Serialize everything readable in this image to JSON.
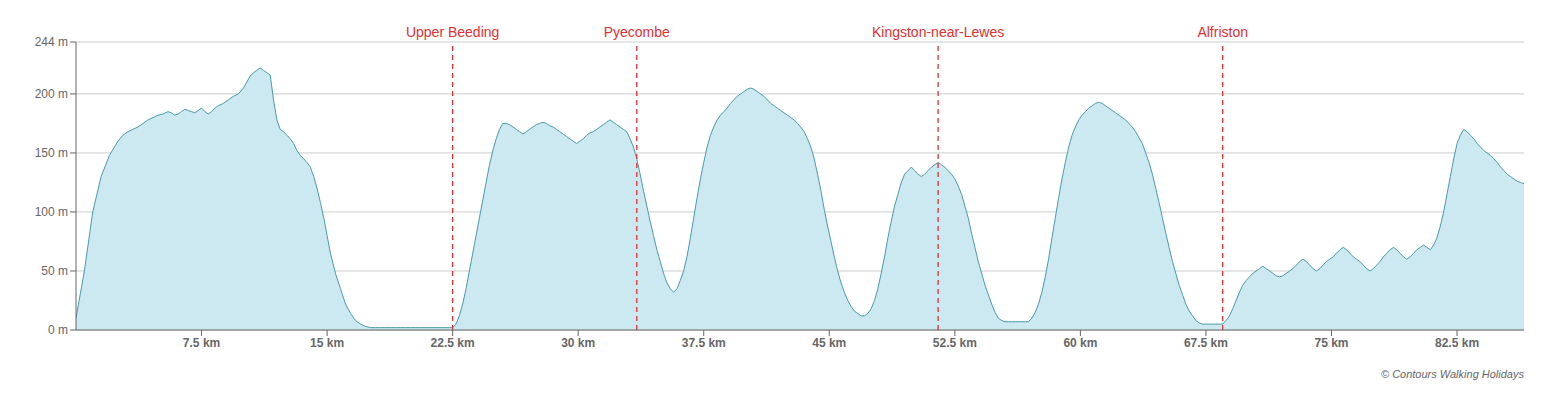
{
  "chart_data": {
    "type": "area",
    "color": "#4a9aa8",
    "fill_color": "#cce8f0",
    "grid": true,
    "xlim": [
      0,
      86.5
    ],
    "ylim": [
      0,
      244
    ],
    "xticks": [
      {
        "value": 7.5,
        "label": "7.5 km"
      },
      {
        "value": 15,
        "label": "15 km"
      },
      {
        "value": 22.5,
        "label": "22.5 km"
      },
      {
        "value": 30,
        "label": "30 km"
      },
      {
        "value": 37.5,
        "label": "37.5 km"
      },
      {
        "value": 45,
        "label": "45 km"
      },
      {
        "value": 52.5,
        "label": "52.5 km"
      },
      {
        "value": 60,
        "label": "60 km"
      },
      {
        "value": 67.5,
        "label": "67.5 km"
      },
      {
        "value": 75,
        "label": "75 km"
      },
      {
        "value": 82.5,
        "label": "82.5 km"
      }
    ],
    "yticks": [
      {
        "value": 0,
        "label": "0 m"
      },
      {
        "value": 50,
        "label": "50 m"
      },
      {
        "value": 100,
        "label": "100 m"
      },
      {
        "value": 150,
        "label": "150 m"
      },
      {
        "value": 200,
        "label": "200 m"
      },
      {
        "value": 244,
        "label": "244 m"
      }
    ],
    "annotations": [
      {
        "type": "vline",
        "x": 22.5,
        "label": "Upper Beeding",
        "color": "#e03030",
        "line_style": "dashed"
      },
      {
        "type": "vline",
        "x": 33.5,
        "label": "Pyecombe",
        "color": "#e03030",
        "line_style": "dashed"
      },
      {
        "type": "vline",
        "x": 51.5,
        "label": "Kingston-near-Lewes",
        "color": "#e03030",
        "line_style": "dashed"
      },
      {
        "type": "vline",
        "x": 68.5,
        "label": "Alfriston",
        "color": "#e03030",
        "line_style": "dashed"
      },
      {
        "type": "note",
        "text": "© Contours Walking Holidays"
      }
    ],
    "x": [
      0.0,
      0.5,
      1.0,
      1.5,
      2.0,
      2.5,
      2.8,
      3.1,
      3.4,
      3.7,
      4.0,
      4.3,
      4.6,
      4.9,
      5.2,
      5.5,
      5.7,
      5.9,
      6.1,
      6.3,
      6.5,
      6.7,
      6.9,
      7.1,
      7.3,
      7.5,
      7.7,
      7.9,
      8.1,
      8.3,
      8.5,
      8.8,
      9.1,
      9.4,
      9.7,
      10.0,
      10.2,
      10.4,
      10.6,
      10.8,
      11.0,
      11.2,
      11.4,
      11.6,
      11.8,
      12.0,
      12.2,
      12.4,
      12.6,
      12.8,
      13.0,
      13.2,
      13.4,
      13.6,
      13.8,
      14.0,
      14.2,
      14.4,
      14.6,
      14.8,
      15.0,
      15.2,
      15.5,
      15.8,
      16.1,
      16.4,
      16.7,
      17.0,
      17.3,
      17.6,
      17.9,
      18.2,
      18.5,
      18.8,
      19.1,
      19.4,
      19.7,
      20.0,
      20.3,
      20.6,
      20.9,
      21.2,
      21.5,
      21.8,
      22.1,
      22.3,
      22.5,
      22.7,
      22.9,
      23.1,
      23.3,
      23.5,
      23.7,
      23.9,
      24.1,
      24.3,
      24.5,
      24.7,
      24.9,
      25.1,
      25.3,
      25.5,
      25.7,
      25.9,
      26.1,
      26.3,
      26.5,
      26.7,
      26.9,
      27.1,
      27.3,
      27.5,
      27.7,
      27.9,
      28.1,
      28.3,
      28.5,
      28.7,
      28.9,
      29.1,
      29.3,
      29.5,
      29.7,
      29.9,
      30.1,
      30.3,
      30.5,
      30.7,
      30.9,
      31.1,
      31.3,
      31.5,
      31.7,
      31.9,
      32.1,
      32.3,
      32.5,
      32.7,
      32.9,
      33.1,
      33.3,
      33.5,
      33.7,
      33.9,
      34.1,
      34.3,
      34.5,
      34.7,
      34.9,
      35.1,
      35.3,
      35.5,
      35.7,
      35.9,
      36.1,
      36.3,
      36.5,
      36.7,
      36.9,
      37.1,
      37.3,
      37.5,
      37.7,
      37.9,
      38.1,
      38.3,
      38.5,
      38.7,
      38.9,
      39.1,
      39.3,
      39.5,
      39.7,
      39.9,
      40.1,
      40.3,
      40.5,
      40.7,
      40.9,
      41.1,
      41.3,
      41.5,
      41.7,
      41.9,
      42.1,
      42.3,
      42.5,
      42.7,
      42.9,
      43.1,
      43.3,
      43.5,
      43.7,
      43.9,
      44.1,
      44.3,
      44.5,
      44.7,
      44.9,
      45.1,
      45.3,
      45.5,
      45.7,
      45.9,
      46.1,
      46.3,
      46.5,
      46.7,
      46.9,
      47.1,
      47.3,
      47.5,
      47.7,
      47.9,
      48.1,
      48.3,
      48.5,
      48.7,
      48.9,
      49.1,
      49.3,
      49.5,
      49.7,
      49.9,
      50.1,
      50.3,
      50.5,
      50.7,
      50.9,
      51.1,
      51.3,
      51.5,
      51.7,
      51.9,
      52.1,
      52.3,
      52.5,
      52.7,
      52.9,
      53.1,
      53.3,
      53.5,
      53.7,
      53.9,
      54.1,
      54.3,
      54.5,
      54.7,
      54.9,
      55.1,
      55.3,
      55.5,
      55.7,
      55.9,
      56.1,
      56.3,
      56.5,
      56.7,
      56.9,
      57.1,
      57.3,
      57.5,
      57.7,
      57.9,
      58.1,
      58.3,
      58.5,
      58.7,
      58.9,
      59.1,
      59.3,
      59.5,
      59.7,
      59.9,
      60.1,
      60.3,
      60.5,
      60.7,
      60.9,
      61.1,
      61.3,
      61.5,
      61.7,
      61.9,
      62.1,
      62.3,
      62.5,
      62.7,
      62.9,
      63.1,
      63.3,
      63.5,
      63.7,
      63.9,
      64.1,
      64.3,
      64.5,
      64.7,
      64.9,
      65.1,
      65.3,
      65.5,
      65.7,
      65.9,
      66.1,
      66.3,
      66.5,
      66.7,
      66.9,
      67.1,
      67.3,
      67.5,
      67.7,
      67.9,
      68.1,
      68.3,
      68.5,
      68.7,
      68.9,
      69.1,
      69.3,
      69.5,
      69.7,
      69.9,
      70.1,
      70.3,
      70.5,
      70.7,
      70.9,
      71.1,
      71.3,
      71.5,
      71.7,
      71.9,
      72.1,
      72.3,
      72.5,
      72.7,
      72.9,
      73.1,
      73.3,
      73.5,
      73.7,
      73.9,
      74.1,
      74.3,
      74.5,
      74.7,
      74.9,
      75.1,
      75.3,
      75.5,
      75.7,
      75.9,
      76.1,
      76.3,
      76.5,
      76.7,
      76.9,
      77.1,
      77.3,
      77.5,
      77.7,
      77.9,
      78.1,
      78.3,
      78.5,
      78.7,
      78.9,
      79.1,
      79.3,
      79.5,
      79.7,
      79.9,
      80.1,
      80.3,
      80.5,
      80.7,
      80.9,
      81.1,
      81.3,
      81.5,
      81.7,
      81.9,
      82.1,
      82.3,
      82.5,
      82.7,
      82.9,
      83.1,
      83.3,
      83.5,
      83.7,
      83.9,
      84.1,
      84.3,
      84.5,
      84.7,
      84.9,
      85.1,
      85.3,
      85.5,
      85.7,
      85.9,
      86.1,
      86.3,
      86.5
    ],
    "values": [
      10,
      50,
      100,
      130,
      148,
      160,
      165,
      168,
      170,
      172,
      175,
      178,
      180,
      182,
      183,
      185,
      184,
      182,
      183,
      185,
      187,
      186,
      185,
      184,
      186,
      188,
      185,
      183,
      185,
      188,
      190,
      192,
      195,
      198,
      200,
      205,
      210,
      215,
      218,
      220,
      222,
      220,
      218,
      216,
      195,
      178,
      170,
      168,
      165,
      162,
      158,
      152,
      148,
      145,
      142,
      138,
      130,
      120,
      108,
      95,
      80,
      65,
      48,
      35,
      22,
      14,
      8,
      5,
      3,
      2,
      2,
      2,
      2,
      2,
      2,
      2,
      2,
      2,
      2,
      2,
      2,
      2,
      2,
      2,
      2,
      2,
      2,
      5,
      12,
      22,
      35,
      50,
      65,
      80,
      95,
      110,
      125,
      140,
      152,
      162,
      170,
      175,
      175,
      174,
      172,
      170,
      168,
      166,
      168,
      170,
      172,
      174,
      175,
      176,
      175,
      173,
      172,
      170,
      168,
      166,
      164,
      162,
      160,
      158,
      160,
      162,
      165,
      167,
      168,
      170,
      172,
      174,
      176,
      178,
      176,
      174,
      172,
      170,
      168,
      162,
      155,
      145,
      132,
      118,
      105,
      92,
      80,
      68,
      58,
      48,
      40,
      35,
      32,
      35,
      42,
      50,
      62,
      78,
      95,
      112,
      128,
      142,
      155,
      165,
      172,
      178,
      182,
      185,
      188,
      192,
      195,
      198,
      200,
      202,
      204,
      205,
      204,
      202,
      200,
      198,
      195,
      192,
      190,
      188,
      186,
      184,
      182,
      180,
      178,
      175,
      172,
      168,
      162,
      155,
      145,
      132,
      118,
      102,
      88,
      75,
      62,
      50,
      40,
      32,
      25,
      20,
      16,
      14,
      12,
      12,
      14,
      18,
      25,
      35,
      48,
      62,
      78,
      92,
      105,
      115,
      125,
      132,
      135,
      138,
      135,
      132,
      130,
      132,
      135,
      138,
      140,
      142,
      140,
      138,
      135,
      132,
      128,
      122,
      115,
      105,
      95,
      82,
      70,
      58,
      48,
      38,
      30,
      22,
      15,
      10,
      8,
      7,
      7,
      7,
      7,
      7,
      7,
      7,
      7,
      10,
      15,
      22,
      32,
      45,
      60,
      78,
      95,
      112,
      128,
      142,
      155,
      165,
      172,
      178,
      182,
      185,
      188,
      190,
      192,
      193,
      192,
      190,
      188,
      186,
      184,
      182,
      180,
      178,
      175,
      172,
      168,
      163,
      158,
      150,
      142,
      132,
      120,
      108,
      95,
      82,
      70,
      58,
      48,
      38,
      30,
      22,
      16,
      12,
      8,
      6,
      5,
      5,
      5,
      5,
      5,
      5,
      5,
      8,
      12,
      18,
      25,
      32,
      38,
      42,
      45,
      48,
      50,
      52,
      54,
      52,
      50,
      48,
      46,
      45,
      46,
      48,
      50,
      52,
      55,
      58,
      60,
      58,
      55,
      52,
      50,
      52,
      55,
      58,
      60,
      62,
      65,
      68,
      70,
      68,
      65,
      62,
      60,
      58,
      55,
      52,
      50,
      52,
      55,
      58,
      62,
      65,
      68,
      70,
      68,
      65,
      62,
      60,
      62,
      65,
      68,
      70,
      72,
      70,
      68,
      72,
      78,
      88,
      100,
      115,
      130,
      145,
      158,
      165,
      170,
      168,
      165,
      162,
      158,
      155,
      152,
      150,
      148,
      145,
      142,
      138,
      135,
      132,
      130,
      128,
      126,
      125,
      124
    ]
  }
}
